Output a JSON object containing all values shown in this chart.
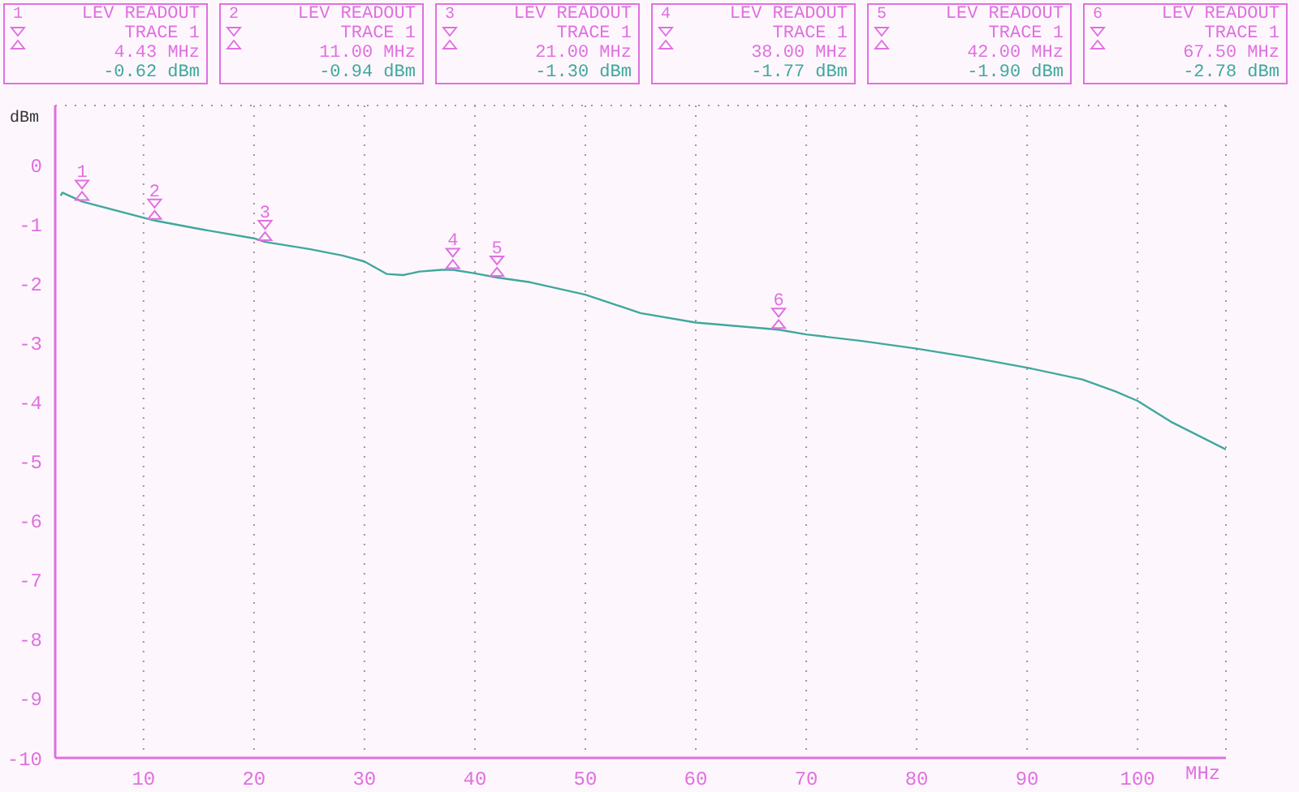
{
  "chart_data": {
    "type": "line",
    "xlabel": "MHz",
    "ylabel": "dBm",
    "x": [
      2.5,
      2.65,
      4.43,
      11,
      15,
      20,
      21,
      25,
      28,
      30,
      32,
      33.5,
      35,
      37,
      38,
      40,
      42,
      45,
      50,
      55,
      60,
      67.5,
      70,
      75,
      80,
      85,
      90,
      95,
      98,
      100,
      103,
      108
    ],
    "series": [
      {
        "color": "#3fa89c",
        "values": [
          -0.52,
          -0.47,
          -0.62,
          -0.94,
          -1.08,
          -1.24,
          -1.3,
          -1.42,
          -1.53,
          -1.63,
          -1.84,
          -1.86,
          -1.8,
          -1.77,
          -1.77,
          -1.83,
          -1.9,
          -1.98,
          -2.19,
          -2.5,
          -2.66,
          -2.78,
          -2.86,
          -2.97,
          -3.1,
          -3.25,
          -3.42,
          -3.62,
          -3.82,
          -3.98,
          -4.33,
          -4.8
        ]
      }
    ],
    "xlim": [
      2,
      108
    ],
    "xticks": [
      10,
      20,
      30,
      40,
      50,
      60,
      70,
      80,
      90,
      100
    ],
    "ylim": [
      -10,
      1
    ],
    "yticks": [
      0,
      -1,
      -2,
      -3,
      -4,
      -5,
      -6,
      -7,
      -8,
      -9,
      -10
    ],
    "grid": true,
    "marker": "none",
    "line_style": "solid",
    "annotations": [
      {
        "text": "1",
        "x": 4.43,
        "y": -0.62
      },
      {
        "text": "2",
        "x": 11,
        "y": -0.94
      },
      {
        "text": "3",
        "x": 21,
        "y": -1.3
      },
      {
        "text": "4",
        "x": 38,
        "y": -1.77
      },
      {
        "text": "5",
        "x": 42,
        "y": -1.9
      },
      {
        "text": "6",
        "x": 67.5,
        "y": -2.78
      },
      "LEV READOUT",
      "TRACE 1",
      "4.43 MHz",
      "-0.62 dBm",
      "LEV READOUT",
      "TRACE 1",
      "11.00 MHz",
      "-0.94 dBm",
      "LEV READOUT",
      "TRACE 1",
      "21.00 MHz",
      "-1.30 dBm",
      "LEV READOUT",
      "TRACE 1",
      "38.00 MHz",
      "-1.77 dBm",
      "LEV READOUT",
      "TRACE 1",
      "42.00 MHz",
      "-1.90 dBm",
      "LEV READOUT",
      "TRACE 1",
      "67.50 MHz",
      "-2.78 dBm"
    ]
  }
}
